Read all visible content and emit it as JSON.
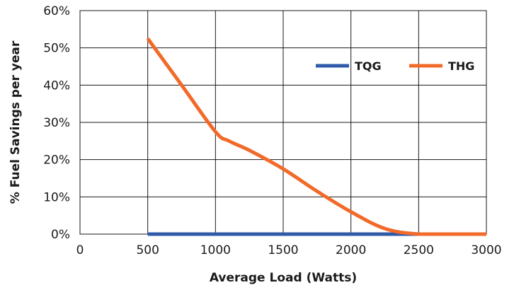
{
  "chart_data": {
    "type": "line",
    "xlabel": "Average Load (Watts)",
    "ylabel": "% Fuel Savings per year",
    "xlim": [
      0,
      3000
    ],
    "ylim": [
      0,
      60
    ],
    "x_ticks": [
      0,
      500,
      1000,
      1500,
      2000,
      2500,
      3000
    ],
    "x_tick_labels": [
      "0",
      "500",
      "1000",
      "1500",
      "2000",
      "2500",
      "3000"
    ],
    "y_ticks": [
      0,
      10,
      20,
      30,
      40,
      50,
      60
    ],
    "y_tick_labels": [
      "0%",
      "10%",
      "20%",
      "30%",
      "40%",
      "50%",
      "60%"
    ],
    "grid": true,
    "legend_position": "top-right",
    "series": [
      {
        "name": "TQG",
        "color": "#2e5aa8",
        "x": [
          500,
          1000,
          1500,
          2000,
          2500,
          3000
        ],
        "y": [
          0,
          0,
          0,
          0,
          0,
          0
        ]
      },
      {
        "name": "THG",
        "color": "#f26a2a",
        "x": [
          500,
          750,
          1000,
          1100,
          1250,
          1500,
          1750,
          2000,
          2250,
          2500,
          2750,
          3000
        ],
        "y": [
          52.5,
          40,
          27.5,
          25,
          22.5,
          17.5,
          11.5,
          6,
          1.5,
          0,
          0,
          0
        ]
      }
    ]
  }
}
